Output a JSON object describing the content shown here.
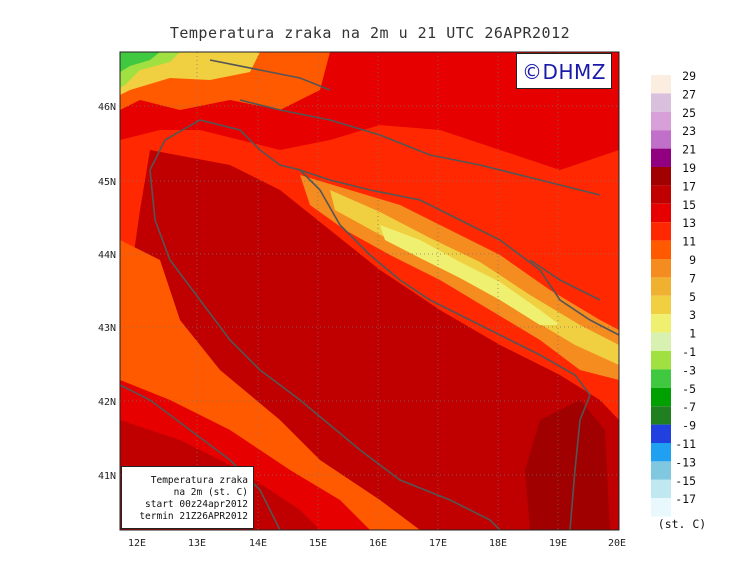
{
  "title": "Temperatura zraka na 2m u 21 UTC 26APR2012",
  "logo": "©DHMZ",
  "info_box": {
    "line1": "Temperatura zraka",
    "line2": "na 2m (st. C)",
    "line3": "start 00z24apr2012",
    "line4": "termin 21Z26APR2012"
  },
  "axes": {
    "lat_labels": [
      "46N",
      "45N",
      "44N",
      "43N",
      "42N",
      "41N"
    ],
    "lon_labels": [
      "12E",
      "13E",
      "14E",
      "15E",
      "16E",
      "17E",
      "18E",
      "19E",
      "20E"
    ]
  },
  "legend": {
    "labels": [
      "29",
      "27",
      "25",
      "23",
      "21",
      "19",
      "17",
      "15",
      "13",
      "11",
      "9",
      "7",
      "5",
      "3",
      "1",
      "-1",
      "-3",
      "-5",
      "-7",
      "-9",
      "-11",
      "-13",
      "-15",
      "-17"
    ],
    "unit": "(st. C)",
    "colors": [
      "#fbeee0",
      "#d9c0dc",
      "#d8a0d8",
      "#c070c8",
      "#900080",
      "#a00000",
      "#c00000",
      "#e60000",
      "#ff2800",
      "#ff5a00",
      "#f58c20",
      "#f0b030",
      "#f0d040",
      "#f0f070",
      "#d8f0b0",
      "#a0e040",
      "#40c840",
      "#00a000",
      "#208020",
      "#2040e0",
      "#20a0f0",
      "#80c8e0",
      "#c0e8f0",
      "#e8f8fc"
    ]
  },
  "colors": {
    "frame": "#222222",
    "coast": "#555555"
  }
}
